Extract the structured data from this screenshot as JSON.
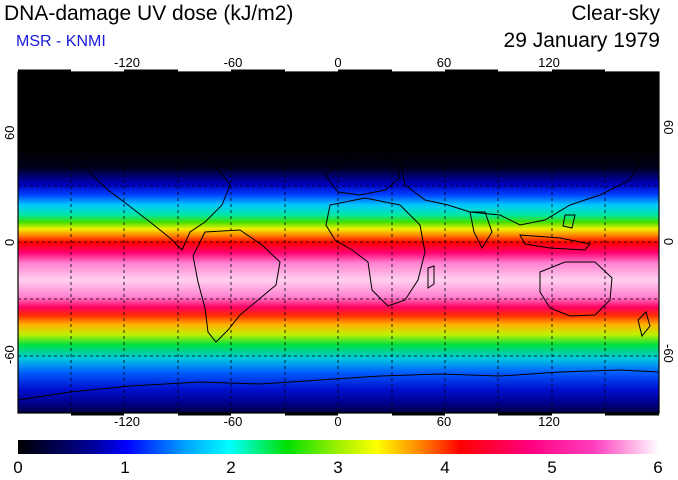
{
  "header": {
    "title": "DNA-damage UV dose (kJ/m2)",
    "credit": "MSR - KNMI",
    "condition": "Clear-sky",
    "date": "29 January 1979"
  },
  "map": {
    "lon_ticks": [
      "-120",
      "-60",
      "0",
      "60",
      "120"
    ],
    "lat_ticks": {
      "north": "60",
      "equator": "0",
      "south": "-60"
    },
    "lon_range": [
      -180,
      180
    ],
    "lat_range": [
      -90,
      90
    ]
  },
  "colorbar": {
    "tick_labels": [
      "0",
      "1",
      "2",
      "3",
      "4",
      "5",
      "6"
    ],
    "min": 0,
    "max": 6,
    "colors": [
      "#000000",
      "#0000d8",
      "#00c8ff",
      "#00e000",
      "#ffff00",
      "#ff0000",
      "#ff00a0",
      "#ffffff"
    ]
  },
  "palette": {
    "text": "#000000",
    "credit": "#1a1adc",
    "grid": "#000000"
  }
}
